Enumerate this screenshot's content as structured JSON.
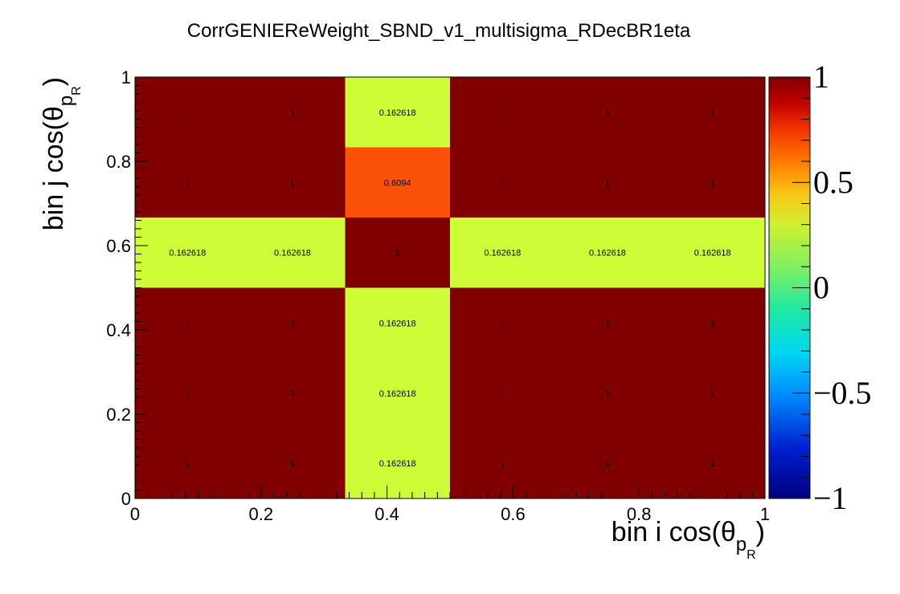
{
  "chart_data": {
    "type": "heatmap",
    "title": "CorrGENIEReWeight_SBND_v1_multisigma_RDecBR1eta",
    "xlabel": "bin i cos(θ",
    "xlabel_sub": "p",
    "xlabel_subsub": "R",
    "xlabel_close": ")",
    "ylabel": "bin j cos(θ",
    "ylabel_sub": "p",
    "ylabel_subsub": "R",
    "ylabel_close": ")",
    "xlim": [
      0,
      1
    ],
    "ylim": [
      0,
      1
    ],
    "zlim": [
      -1,
      1
    ],
    "x_edges": [
      0,
      0.1667,
      0.3333,
      0.5,
      0.6667,
      0.8333,
      1
    ],
    "y_edges": [
      0,
      0.1667,
      0.3333,
      0.5,
      0.6667,
      0.8333,
      1
    ],
    "x_ticks": [
      "0",
      "0.2",
      "0.4",
      "0.6",
      "0.8",
      "1"
    ],
    "x_tick_values": [
      0,
      0.2,
      0.4,
      0.6,
      0.8,
      1
    ],
    "y_ticks": [
      "0",
      "0.2",
      "0.4",
      "0.6",
      "0.8",
      "1"
    ],
    "y_tick_values": [
      0,
      0.2,
      0.4,
      0.6,
      0.8,
      1
    ],
    "colorbar_ticks": [
      "−1",
      "−0.5",
      "0",
      "0.5",
      "1"
    ],
    "colorbar_tick_values": [
      -1,
      -0.5,
      0,
      0.5,
      1
    ],
    "grid": false,
    "values": [
      [
        1,
        1,
        0.162618,
        1,
        1,
        1
      ],
      [
        1,
        1,
        0.162618,
        1,
        1,
        1
      ],
      [
        1,
        1,
        0.162618,
        1,
        1,
        1
      ],
      [
        0.162618,
        0.162618,
        1,
        0.162618,
        0.162618,
        0.162618
      ],
      [
        1,
        1,
        0.6094,
        1,
        1,
        1
      ],
      [
        1,
        1,
        0.162618,
        1,
        1,
        1
      ]
    ],
    "cell_labels": [
      [
        "1",
        "1",
        "0.162618",
        "1",
        "1",
        "1"
      ],
      [
        "1",
        "1",
        "0.162618",
        "1",
        "1",
        "1"
      ],
      [
        "1",
        "1",
        "0.162618",
        "1",
        "1",
        "1"
      ],
      [
        "0.162618",
        "0.162618",
        "1",
        "0.162618",
        "0.162618",
        "0.162618"
      ],
      [
        "1",
        "1",
        "0.6094",
        "1",
        "1",
        "1"
      ],
      [
        "1",
        "1",
        "0.162618",
        "1",
        "1",
        "1"
      ]
    ],
    "colors": {
      "c_1": "#800000",
      "c_06094": "#fb5207",
      "c_0162618": "#cefd38"
    }
  }
}
